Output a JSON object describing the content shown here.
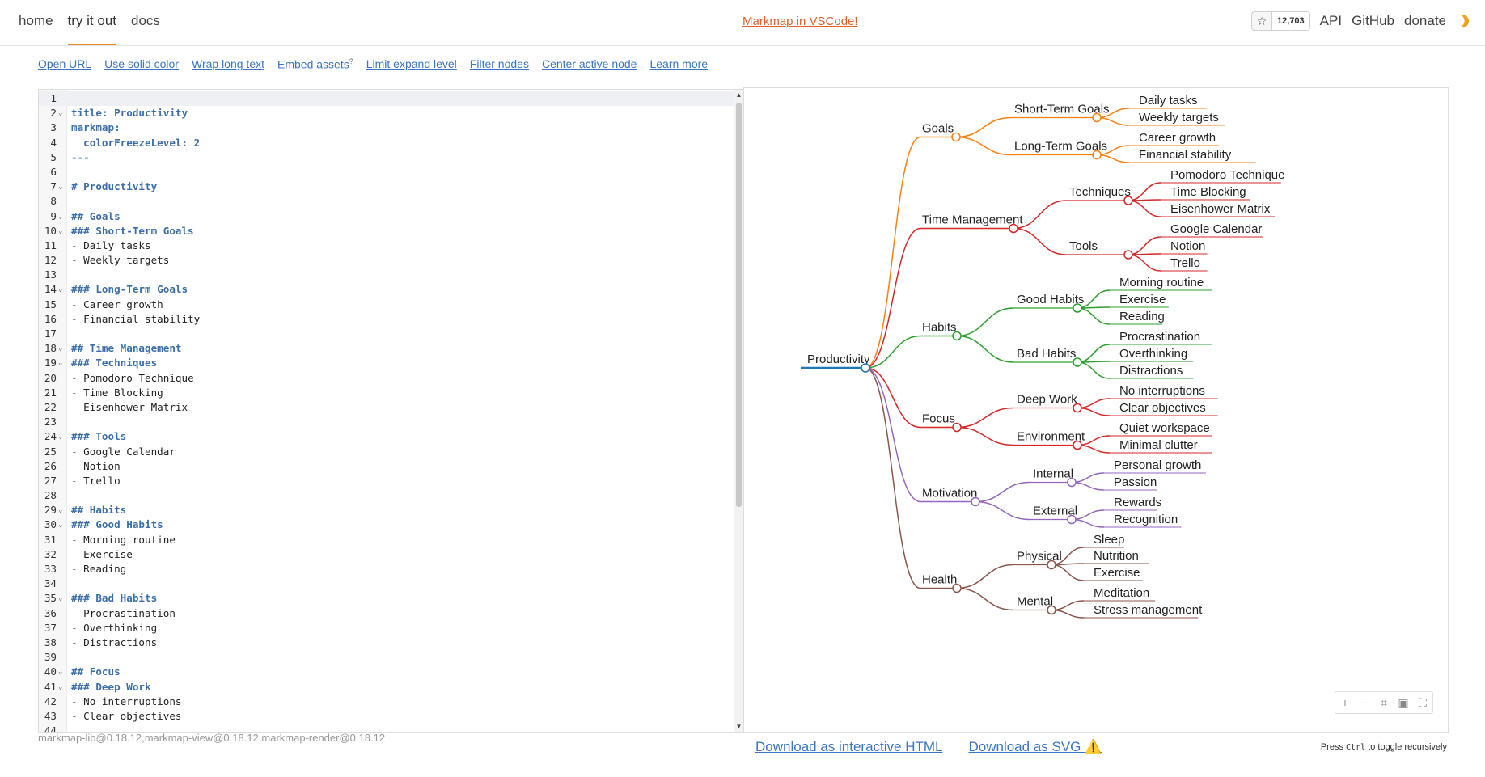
{
  "nav": {
    "left": [
      "home",
      "try it out",
      "docs"
    ],
    "promo": "Markmap in VSCode!",
    "star_count": "12,703",
    "right": [
      "API",
      "GitHub",
      "donate"
    ]
  },
  "toolbar": {
    "links": [
      "Open URL",
      "Use solid color",
      "Wrap long text",
      "Embed assets",
      "Limit expand level",
      "Filter nodes",
      "Center active node",
      "Learn more"
    ],
    "embed_sup": "?"
  },
  "editor": {
    "lines": [
      {
        "n": "1",
        "t": "---",
        "k": "fm"
      },
      {
        "n": "2",
        "t": "title: Productivity",
        "k": "meta",
        "fold": true
      },
      {
        "n": "3",
        "t": "markmap:",
        "k": "meta"
      },
      {
        "n": "4",
        "t": "  colorFreezeLevel: 2",
        "k": "meta"
      },
      {
        "n": "5",
        "t": "---",
        "k": "meta"
      },
      {
        "n": "6",
        "t": "",
        "k": ""
      },
      {
        "n": "7",
        "t": "# Productivity",
        "k": "h",
        "fold": true
      },
      {
        "n": "8",
        "t": "",
        "k": ""
      },
      {
        "n": "9",
        "t": "## Goals",
        "k": "h",
        "fold": true
      },
      {
        "n": "10",
        "t": "### Short-Term Goals",
        "k": "h",
        "fold": true
      },
      {
        "n": "11",
        "t": "- Daily tasks",
        "k": "li"
      },
      {
        "n": "12",
        "t": "- Weekly targets",
        "k": "li"
      },
      {
        "n": "13",
        "t": "",
        "k": ""
      },
      {
        "n": "14",
        "t": "### Long-Term Goals",
        "k": "h",
        "fold": true
      },
      {
        "n": "15",
        "t": "- Career growth",
        "k": "li"
      },
      {
        "n": "16",
        "t": "- Financial stability",
        "k": "li"
      },
      {
        "n": "17",
        "t": "",
        "k": ""
      },
      {
        "n": "18",
        "t": "## Time Management",
        "k": "h",
        "fold": true
      },
      {
        "n": "19",
        "t": "### Techniques",
        "k": "h",
        "fold": true
      },
      {
        "n": "20",
        "t": "- Pomodoro Technique",
        "k": "li"
      },
      {
        "n": "21",
        "t": "- Time Blocking",
        "k": "li"
      },
      {
        "n": "22",
        "t": "- Eisenhower Matrix",
        "k": "li"
      },
      {
        "n": "23",
        "t": "",
        "k": ""
      },
      {
        "n": "24",
        "t": "### Tools",
        "k": "h",
        "fold": true
      },
      {
        "n": "25",
        "t": "- Google Calendar",
        "k": "li"
      },
      {
        "n": "26",
        "t": "- Notion",
        "k": "li"
      },
      {
        "n": "27",
        "t": "- Trello",
        "k": "li"
      },
      {
        "n": "28",
        "t": "",
        "k": ""
      },
      {
        "n": "29",
        "t": "## Habits",
        "k": "h",
        "fold": true
      },
      {
        "n": "30",
        "t": "### Good Habits",
        "k": "h",
        "fold": true
      },
      {
        "n": "31",
        "t": "- Morning routine",
        "k": "li"
      },
      {
        "n": "32",
        "t": "- Exercise",
        "k": "li"
      },
      {
        "n": "33",
        "t": "- Reading",
        "k": "li"
      },
      {
        "n": "34",
        "t": "",
        "k": ""
      },
      {
        "n": "35",
        "t": "### Bad Habits",
        "k": "h",
        "fold": true
      },
      {
        "n": "36",
        "t": "- Procrastination",
        "k": "li"
      },
      {
        "n": "37",
        "t": "- Overthinking",
        "k": "li"
      },
      {
        "n": "38",
        "t": "- Distractions",
        "k": "li"
      },
      {
        "n": "39",
        "t": "",
        "k": ""
      },
      {
        "n": "40",
        "t": "## Focus",
        "k": "h",
        "fold": true
      },
      {
        "n": "41",
        "t": "### Deep Work",
        "k": "h",
        "fold": true
      },
      {
        "n": "42",
        "t": "- No interruptions",
        "k": "li"
      },
      {
        "n": "43",
        "t": "- Clear objectives",
        "k": "li"
      },
      {
        "n": "44",
        "t": "",
        "k": ""
      }
    ]
  },
  "version": "markmap-lib@0.18.12,markmap-view@0.18.12,markmap-render@0.18.12",
  "mindmap": {
    "root": "Productivity",
    "branches": [
      {
        "label": "Goals",
        "color": "#ff7f0e",
        "children": [
          {
            "label": "Short-Term Goals",
            "leaves": [
              "Daily tasks",
              "Weekly targets"
            ]
          },
          {
            "label": "Long-Term Goals",
            "leaves": [
              "Career growth",
              "Financial stability"
            ]
          }
        ]
      },
      {
        "label": "Time Management",
        "color": "#d62728",
        "children": [
          {
            "label": "Techniques",
            "leaves": [
              "Pomodoro Technique",
              "Time Blocking",
              "Eisenhower Matrix"
            ]
          },
          {
            "label": "Tools",
            "leaves": [
              "Google Calendar",
              "Notion",
              "Trello"
            ]
          }
        ]
      },
      {
        "label": "Habits",
        "color": "#2ca02c",
        "children": [
          {
            "label": "Good Habits",
            "leaves": [
              "Morning routine",
              "Exercise",
              "Reading"
            ]
          },
          {
            "label": "Bad Habits",
            "leaves": [
              "Procrastination",
              "Overthinking",
              "Distractions"
            ]
          }
        ]
      },
      {
        "label": "Focus",
        "color": "#d62728",
        "children": [
          {
            "label": "Deep Work",
            "leaves": [
              "No interruptions",
              "Clear objectives"
            ]
          },
          {
            "label": "Environment",
            "leaves": [
              "Quiet workspace",
              "Minimal clutter"
            ]
          }
        ]
      },
      {
        "label": "Motivation",
        "color": "#9467bd",
        "children": [
          {
            "label": "Internal",
            "leaves": [
              "Personal growth",
              "Passion"
            ]
          },
          {
            "label": "External",
            "leaves": [
              "Rewards",
              "Recognition"
            ]
          }
        ]
      },
      {
        "label": "Health",
        "color": "#8c564b",
        "children": [
          {
            "label": "Physical",
            "leaves": [
              "Sleep",
              "Nutrition",
              "Exercise"
            ]
          },
          {
            "label": "Mental",
            "leaves": [
              "Meditation",
              "Stress management"
            ]
          }
        ]
      }
    ],
    "root_color": "#1f77b4"
  },
  "footer": {
    "download_html": "Download as interactive HTML",
    "download_svg": "Download as SVG ⚠️",
    "hint_prefix": "Press ",
    "hint_key": "Ctrl",
    "hint_suffix": " to toggle recursively"
  }
}
